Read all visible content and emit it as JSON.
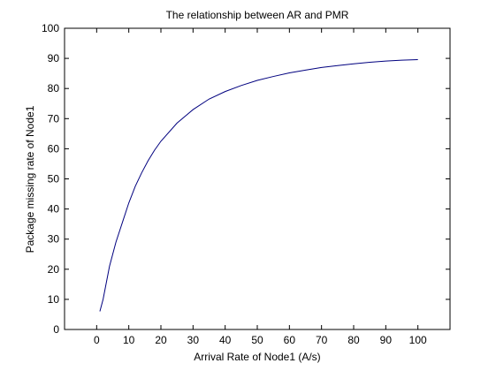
{
  "chart_data": {
    "type": "line",
    "title": "The relationship between AR and PMR",
    "xlabel": "Arrival Rate of Node1 (A/s)",
    "ylabel": "Package missing rate of Node1",
    "xlim": [
      -10,
      110
    ],
    "ylim": [
      0,
      100
    ],
    "xticks": [
      0,
      10,
      20,
      30,
      40,
      50,
      60,
      70,
      80,
      90,
      100
    ],
    "yticks": [
      0,
      10,
      20,
      30,
      40,
      50,
      60,
      70,
      80,
      90,
      100
    ],
    "grid": false,
    "legend": "none",
    "series": [
      {
        "color": "#00007f",
        "x": [
          1,
          2,
          3,
          4,
          5,
          6,
          8,
          10,
          12,
          14,
          16,
          18,
          20,
          25,
          30,
          35,
          40,
          45,
          50,
          55,
          60,
          65,
          70,
          75,
          80,
          85,
          90,
          95,
          100
        ],
        "y": [
          6,
          10,
          15.5,
          21,
          25,
          29,
          35.5,
          42,
          47.5,
          52,
          56,
          59.5,
          62.5,
          68.5,
          73,
          76.5,
          79,
          81,
          82.7,
          84,
          85.2,
          86.1,
          87,
          87.6,
          88.2,
          88.7,
          89.1,
          89.4,
          89.6
        ]
      }
    ]
  }
}
